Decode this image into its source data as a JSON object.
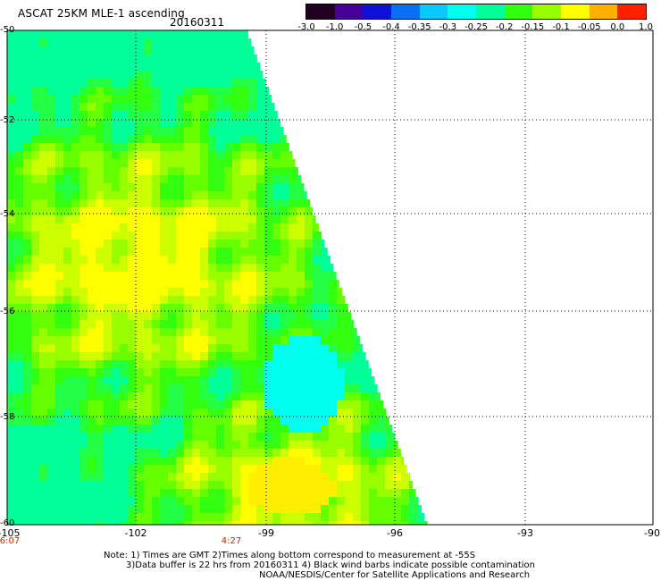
{
  "header": {
    "title": "ASCAT 25KM MLE-1 ascending",
    "date": "20160311"
  },
  "colorbar": {
    "colors": [
      "#220022",
      "#48009a",
      "#1010d8",
      "#0a6ff0",
      "#0ac8f8",
      "#00ffee",
      "#00ff99",
      "#33ff11",
      "#99ff00",
      "#ffff00",
      "#ffb000",
      "#ff2000"
    ],
    "labels": [
      "-3.0",
      "-1.0",
      "-0.5",
      "-0.4",
      "-0.35",
      "-0.3",
      "-0.25",
      "-0.2",
      "-0.15",
      "-0.1",
      "-0.05",
      "0.0",
      "1.0"
    ]
  },
  "map": {
    "lat_labels": [
      "-50",
      "-52",
      "-54",
      "-56",
      "-58",
      "-60"
    ],
    "lon_labels": [
      "-105",
      "-102",
      "-99",
      "-96",
      "-93",
      "-90"
    ],
    "time_labels": [
      "6:07",
      "4:27"
    ]
  },
  "notes": {
    "line1": "Note: 1) Times are GMT 2)Times along bottom correspond to measurement at -55S",
    "line2": "3)Data buffer is 22 hrs from 20160311 4) Black wind barbs indicate possible contamination",
    "line3": "NOAA/NESDIS/Center for Satellite Applications and Research"
  }
}
